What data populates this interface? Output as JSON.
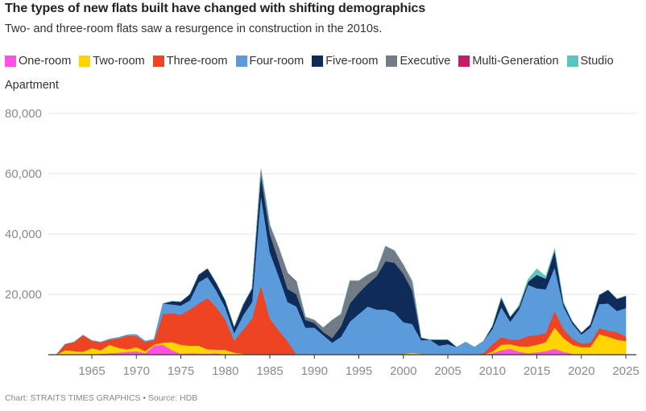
{
  "header": {
    "title": "The types of new flats built have changed with shifting demographics",
    "subtitle": "Two- and three-room flats saw a resurgence in construction in the 2010s."
  },
  "legend": [
    {
      "label": "One-room",
      "color": "#ff4fe4"
    },
    {
      "label": "Two-room",
      "color": "#ffd400"
    },
    {
      "label": "Three-room",
      "color": "#ef4423"
    },
    {
      "label": "Four-room",
      "color": "#5b9bdc"
    },
    {
      "label": "Five-room",
      "color": "#0e2b5a"
    },
    {
      "label": "Executive",
      "color": "#737b86"
    },
    {
      "label": "Multi-Generation",
      "color": "#c91b62"
    },
    {
      "label": "Studio",
      "color": "#5bc6bf"
    }
  ],
  "footer": "Chart: STRAITS TIMES GRAPHICS • Source: HDB",
  "chart_data": {
    "type": "area",
    "stacked": true,
    "title": "The types of new flats built have changed with shifting demographics",
    "subtitle": "Two- and three-room flats saw a resurgence in construction in the 2010s.",
    "xlabel": "",
    "ylabel": "Apartment",
    "xlim": [
      1960,
      2025
    ],
    "ylim": [
      0,
      80000
    ],
    "xticks": [
      1965,
      1970,
      1975,
      1980,
      1985,
      1990,
      1995,
      2000,
      2005,
      2010,
      2015,
      2020,
      2025
    ],
    "yticks": [
      0,
      20000,
      40000,
      60000,
      80000
    ],
    "ytick_labels": [
      "",
      "20,000",
      "40,000",
      "60,000",
      "80,000"
    ],
    "grid": "horizontal",
    "legend_position": "top",
    "x": [
      1961,
      1962,
      1963,
      1964,
      1965,
      1966,
      1967,
      1968,
      1969,
      1970,
      1971,
      1972,
      1973,
      1974,
      1975,
      1976,
      1977,
      1978,
      1979,
      1980,
      1981,
      1982,
      1983,
      1984,
      1985,
      1986,
      1987,
      1988,
      1989,
      1990,
      1991,
      1992,
      1993,
      1994,
      1995,
      1996,
      1997,
      1998,
      1999,
      2000,
      2001,
      2002,
      2003,
      2004,
      2005,
      2006,
      2007,
      2008,
      2009,
      2010,
      2011,
      2012,
      2013,
      2014,
      2015,
      2016,
      2017,
      2018,
      2019,
      2020,
      2021,
      2022,
      2023,
      2024,
      2025
    ],
    "series": [
      {
        "name": "One-room",
        "color": "#ff4fe4",
        "values": [
          0,
          0,
          0,
          0,
          0,
          300,
          500,
          700,
          900,
          1200,
          500,
          3000,
          3300,
          1500,
          300,
          500,
          400,
          300,
          500,
          0,
          0,
          0,
          0,
          0,
          0,
          0,
          0,
          0,
          0,
          0,
          0,
          0,
          0,
          0,
          0,
          0,
          0,
          0,
          0,
          0,
          0,
          0,
          0,
          0,
          0,
          0,
          0,
          0,
          0,
          500,
          1500,
          2000,
          1000,
          500,
          800,
          1200,
          2000,
          1000,
          300,
          0,
          0,
          300,
          0,
          0,
          0
        ]
      },
      {
        "name": "Two-room",
        "color": "#ffd400",
        "values": [
          0,
          1500,
          1200,
          1000,
          2200,
          1200,
          2800,
          1600,
          900,
          1300,
          700,
          400,
          700,
          2700,
          3000,
          2500,
          2600,
          1500,
          1200,
          1600,
          700,
          300,
          0,
          0,
          0,
          0,
          0,
          0,
          0,
          0,
          0,
          0,
          0,
          0,
          0,
          0,
          0,
          0,
          0,
          300,
          700,
          300,
          0,
          0,
          0,
          0,
          0,
          0,
          0,
          500,
          1800,
          1500,
          1800,
          2200,
          2500,
          3000,
          7000,
          4500,
          3000,
          2500,
          2500,
          6500,
          6000,
          5000,
          4500
        ]
      },
      {
        "name": "Three-room",
        "color": "#ef4423",
        "values": [
          0,
          2000,
          3000,
          5500,
          2500,
          2500,
          1700,
          3100,
          4500,
          3700,
          3000,
          1400,
          9500,
          9500,
          10000,
          12000,
          14000,
          17000,
          14000,
          10000,
          4000,
          8000,
          12000,
          23000,
          12000,
          8000,
          4500,
          0,
          0,
          0,
          0,
          0,
          0,
          0,
          0,
          0,
          0,
          0,
          0,
          0,
          0,
          0,
          0,
          0,
          0,
          0,
          200,
          0,
          500,
          2500,
          2500,
          1500,
          2200,
          3500,
          3200,
          3000,
          5500,
          3000,
          2000,
          1200,
          1500,
          2000,
          2000,
          2500,
          1500
        ]
      },
      {
        "name": "Four-room",
        "color": "#5b9bdc",
        "values": [
          0,
          0,
          0,
          0,
          0,
          200,
          200,
          300,
          300,
          500,
          300,
          300,
          3500,
          3000,
          3000,
          3000,
          7000,
          7000,
          5500,
          4000,
          2500,
          4800,
          5500,
          30000,
          22000,
          18000,
          13000,
          16000,
          9000,
          9000,
          6500,
          4000,
          6000,
          11000,
          13500,
          16000,
          15000,
          15000,
          14000,
          10500,
          9500,
          4500,
          5000,
          3000,
          3500,
          2500,
          4000,
          2500,
          4000,
          5000,
          10000,
          6000,
          10000,
          17000,
          15500,
          14500,
          14500,
          7500,
          5000,
          3000,
          5000,
          8000,
          9000,
          7000,
          9500
        ]
      },
      {
        "name": "Five-room",
        "color": "#0e2b5a",
        "values": [
          0,
          0,
          0,
          0,
          0,
          0,
          0,
          0,
          0,
          0,
          0,
          0,
          0,
          1000,
          1300,
          2000,
          2500,
          2800,
          2500,
          2300,
          2000,
          3500,
          4500,
          6500,
          6000,
          5000,
          4300,
          4000,
          2500,
          1500,
          1000,
          1500,
          3500,
          6000,
          7000,
          7500,
          11000,
          16000,
          16500,
          16000,
          11000,
          800,
          0,
          2000,
          1500,
          0,
          0,
          0,
          0,
          1000,
          3000,
          1500,
          1000,
          1000,
          4500,
          3500,
          5500,
          1000,
          700,
          600,
          1000,
          3000,
          4500,
          4000,
          4000
        ]
      },
      {
        "name": "Executive",
        "color": "#737b86",
        "values": [
          0,
          0,
          0,
          0,
          0,
          0,
          0,
          0,
          0,
          0,
          0,
          0,
          0,
          0,
          0,
          0,
          0,
          0,
          0,
          0,
          0,
          0,
          0,
          2000,
          3000,
          4500,
          5000,
          4000,
          1000,
          1000,
          1500,
          6000,
          4000,
          7500,
          4000,
          3000,
          2000,
          5000,
          4000,
          3000,
          3000,
          0,
          0,
          0,
          0,
          0,
          0,
          0,
          0,
          0,
          0,
          0,
          0,
          0,
          0,
          0,
          0,
          0,
          0,
          0,
          0,
          0,
          0,
          0,
          0
        ]
      },
      {
        "name": "Multi-Generation",
        "color": "#c91b62",
        "values": [
          0,
          0,
          0,
          0,
          0,
          0,
          0,
          0,
          0,
          0,
          0,
          0,
          0,
          0,
          0,
          0,
          0,
          0,
          0,
          0,
          0,
          0,
          0,
          0,
          0,
          0,
          300,
          300,
          0,
          0,
          0,
          0,
          0,
          0,
          0,
          0,
          0,
          0,
          0,
          0,
          0,
          0,
          0,
          0,
          0,
          0,
          0,
          0,
          0,
          0,
          0,
          0,
          0,
          0,
          0,
          0,
          0,
          0,
          0,
          0,
          0,
          0,
          0,
          0,
          0
        ]
      },
      {
        "name": "Studio",
        "color": "#5bc6bf",
        "values": [
          0,
          0,
          0,
          0,
          0,
          0,
          0,
          0,
          0,
          0,
          0,
          0,
          0,
          0,
          0,
          0,
          0,
          0,
          0,
          0,
          0,
          0,
          0,
          0,
          0,
          0,
          0,
          0,
          0,
          0,
          0,
          0,
          0,
          0,
          0,
          0,
          0,
          0,
          0,
          0,
          300,
          0,
          0,
          0,
          0,
          0,
          0,
          0,
          0,
          0,
          300,
          0,
          500,
          800,
          2000,
          800,
          700,
          500,
          0,
          0,
          0,
          0,
          0,
          0,
          0
        ]
      }
    ]
  }
}
